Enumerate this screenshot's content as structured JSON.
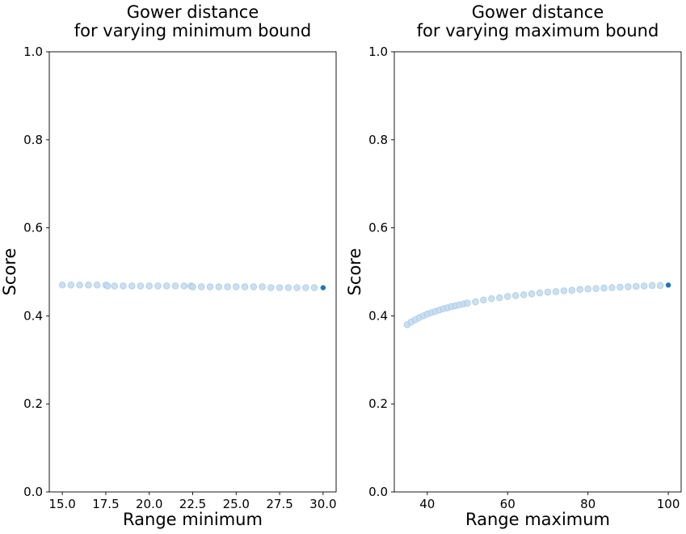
{
  "chart_data": [
    {
      "type": "scatter",
      "title_lines": [
        "Gower distance",
        "for varying minimum bound"
      ],
      "xlabel": "Range minimum",
      "ylabel": "Score",
      "xlim": [
        14.25,
        30.75
      ],
      "ylim": [
        0,
        1
      ],
      "xticks": [
        "15.0",
        "17.5",
        "20.0",
        "22.5",
        "25.0",
        "27.5",
        "30.0"
      ],
      "xtick_values": [
        15,
        17.5,
        20,
        22.5,
        25,
        27.5,
        30
      ],
      "yticks": [
        "0.0",
        "0.2",
        "0.4",
        "0.6",
        "0.8",
        "1.0"
      ],
      "ytick_values": [
        0,
        0.2,
        0.4,
        0.6,
        0.8,
        1.0
      ],
      "grid": false,
      "point_color": "#c3dbee",
      "point_edge": "#a7c9e6",
      "highlight_color": "#1f77b4",
      "points": {
        "x": [
          15.0,
          15.5,
          16.0,
          16.5,
          17.0,
          17.5,
          17.6,
          18.0,
          18.5,
          19.0,
          19.5,
          20.0,
          20.5,
          21.0,
          21.5,
          22.0,
          22.4,
          22.5,
          23.0,
          23.5,
          24.0,
          24.5,
          25.0,
          25.5,
          26.0,
          26.5,
          27.0,
          27.5,
          28.0,
          28.5,
          29.0,
          29.5
        ],
        "y": [
          0.47,
          0.47,
          0.47,
          0.47,
          0.47,
          0.47,
          0.468,
          0.468,
          0.468,
          0.468,
          0.468,
          0.468,
          0.468,
          0.468,
          0.468,
          0.468,
          0.468,
          0.466,
          0.466,
          0.466,
          0.466,
          0.466,
          0.466,
          0.466,
          0.466,
          0.466,
          0.464,
          0.464,
          0.464,
          0.464,
          0.464,
          0.464
        ]
      },
      "highlight": {
        "x": 30.0,
        "y": 0.464
      }
    },
    {
      "type": "scatter",
      "title_lines": [
        "Gower distance",
        "for varying maximum bound"
      ],
      "xlabel": "Range maximum",
      "ylabel": "Score",
      "xlim": [
        31.8,
        103.2
      ],
      "ylim": [
        0,
        1
      ],
      "xticks": [
        "40",
        "60",
        "80",
        "100"
      ],
      "xtick_values": [
        40,
        60,
        80,
        100
      ],
      "yticks": [
        "0.0",
        "0.2",
        "0.4",
        "0.6",
        "0.8",
        "1.0"
      ],
      "ytick_values": [
        0,
        0.2,
        0.4,
        0.6,
        0.8,
        1.0
      ],
      "grid": false,
      "point_color": "#c3dbee",
      "point_edge": "#a7c9e6",
      "highlight_color": "#1f77b4",
      "points": {
        "x": [
          35,
          36,
          37,
          38,
          39,
          40,
          41,
          42,
          43,
          44,
          45,
          46,
          47,
          48,
          49,
          50,
          52,
          54,
          56,
          58,
          60,
          62,
          64,
          66,
          68,
          70,
          72,
          74,
          76,
          78,
          80,
          82,
          84,
          86,
          88,
          90,
          92,
          94,
          96,
          98
        ],
        "y": [
          0.38,
          0.386,
          0.391,
          0.396,
          0.4,
          0.404,
          0.407,
          0.41,
          0.413,
          0.416,
          0.418,
          0.421,
          0.423,
          0.425,
          0.427,
          0.429,
          0.432,
          0.436,
          0.439,
          0.441,
          0.444,
          0.446,
          0.448,
          0.45,
          0.452,
          0.454,
          0.455,
          0.457,
          0.458,
          0.46,
          0.461,
          0.462,
          0.463,
          0.464,
          0.465,
          0.466,
          0.467,
          0.468,
          0.469,
          0.469
        ]
      },
      "highlight": {
        "x": 100,
        "y": 0.47
      }
    }
  ]
}
